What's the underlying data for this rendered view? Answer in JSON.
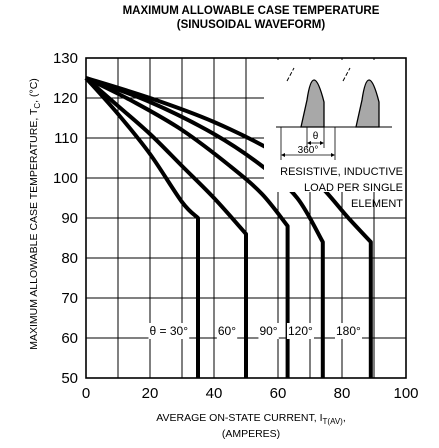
{
  "chart_data": {
    "type": "line",
    "title": "MAXIMUM ALLOWABLE CASE TEMPERATURE",
    "subtitle": "(SINUSOIDAL WAVEFORM)",
    "ylabel": {
      "main": "MAXIMUM ALLOWABLE CASE TEMPERATURE, T",
      "sub": "C",
      "unit": ", (°C)"
    },
    "xlabel": {
      "main": "AVERAGE ON-STATE  CURRENT, I",
      "sub": "T(AV)",
      "tail": ",",
      "line2": "(AMPERES)"
    },
    "xlim": [
      0,
      100
    ],
    "ylim": [
      50,
      130
    ],
    "xticks": [
      0,
      20,
      40,
      60,
      80,
      100
    ],
    "yticks": [
      50,
      60,
      70,
      80,
      90,
      100,
      110,
      120,
      130
    ],
    "grid": true,
    "series": [
      {
        "name": "θ = 30°",
        "x": [
          0,
          10,
          20,
          30,
          35,
          35
        ],
        "y": [
          125,
          116,
          106,
          94,
          90,
          50
        ]
      },
      {
        "name": "60°",
        "x": [
          0,
          10,
          20,
          30,
          40,
          50,
          50
        ],
        "y": [
          125,
          118,
          111,
          103,
          95,
          86,
          50
        ]
      },
      {
        "name": "90°",
        "x": [
          0,
          15,
          30,
          45,
          55,
          63,
          63
        ],
        "y": [
          125,
          119,
          112,
          103,
          96,
          88,
          50
        ]
      },
      {
        "name": "120°",
        "x": [
          0,
          20,
          40,
          55,
          66,
          74,
          74
        ],
        "y": [
          125,
          119,
          111,
          103,
          95,
          84,
          50
        ]
      },
      {
        "name": "180°",
        "x": [
          0,
          20,
          40,
          60,
          72,
          82,
          89,
          89
        ],
        "y": [
          125,
          120,
          114,
          106,
          99,
          90,
          84,
          50
        ]
      }
    ],
    "annotations": {
      "theta": "θ",
      "period": "360°",
      "note": [
        "RESISTIVE, INDUCTIVE",
        "LOAD PER SINGLE",
        "ELEMENT"
      ]
    }
  }
}
